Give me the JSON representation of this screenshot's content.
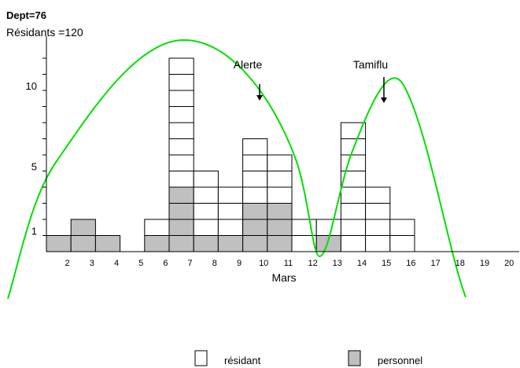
{
  "chart_data": {
    "type": "bar",
    "title": "Dept=76",
    "subtitle": "Résidants =120",
    "xlabel": "Mars",
    "ylabel": "",
    "xlim": [
      1.5,
      20.5
    ],
    "ylim": [
      0,
      12
    ],
    "x_ticks": [
      2,
      3,
      4,
      5,
      6,
      7,
      8,
      9,
      10,
      11,
      12,
      13,
      14,
      15,
      16,
      17,
      18,
      19,
      20
    ],
    "y_ticks": [
      1,
      5,
      10
    ],
    "categories": [
      "2",
      "3",
      "4",
      "5",
      "6",
      "7",
      "8",
      "9",
      "10",
      "11",
      "12",
      "13",
      "14",
      "15",
      "16",
      "17",
      "18",
      "19",
      "20"
    ],
    "series": [
      {
        "name": "résidant",
        "color": "#ffffff",
        "values": [
          0,
          0,
          0,
          0,
          1,
          8,
          4,
          3,
          4,
          3,
          2,
          1,
          8,
          4,
          2,
          0,
          0,
          0,
          0
        ]
      },
      {
        "name": "personnel",
        "color": "#c0c0c0",
        "values": [
          1,
          2,
          1,
          0,
          1,
          4,
          1,
          1,
          3,
          3,
          0,
          1,
          0,
          0,
          0,
          0,
          0,
          0,
          0
        ]
      }
    ],
    "stacked": true,
    "bar_style": "stacked unit boxes, personnel at bottom",
    "curve_color": "#00e000",
    "annotations": [
      {
        "text": "Alerte",
        "x": 10,
        "y": 9.3,
        "arrow": "down"
      },
      {
        "text": "Tamiflu",
        "x": 15,
        "y": 9.0,
        "arrow": "down"
      }
    ],
    "legend": {
      "placement": "bottom",
      "entries": [
        {
          "label": "résidant",
          "color": "#ffffff"
        },
        {
          "label": "personnel",
          "color": "#c0c0c0"
        }
      ]
    },
    "grid": false
  }
}
